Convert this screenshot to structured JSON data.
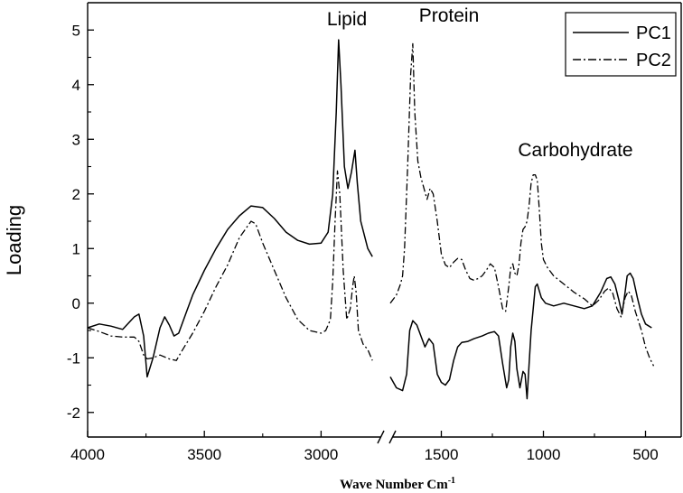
{
  "chart_data": {
    "type": "line",
    "title": "",
    "xlabel": "Wave Number Cm",
    "xlabel_sup": "-1",
    "ylabel": "Loading",
    "ylim": [
      -2.45,
      5.5
    ],
    "x_axis": "reversed, broken between 2750 and 1750",
    "x_ticks": [
      4000,
      3500,
      3000,
      1500,
      1000,
      500
    ],
    "y_ticks": [
      -2,
      -1,
      0,
      1,
      2,
      3,
      4,
      5
    ],
    "legend_position": "top-right",
    "annotations": [
      "Lipid",
      "Protein",
      "Carbohydrate"
    ],
    "series": [
      {
        "name": "PC1",
        "style": "solid",
        "segments": [
          [
            [
              4000,
              -0.45
            ],
            [
              3950,
              -0.38
            ],
            [
              3900,
              -0.42
            ],
            [
              3850,
              -0.48
            ],
            [
              3800,
              -0.25
            ],
            [
              3780,
              -0.2
            ],
            [
              3760,
              -0.6
            ],
            [
              3745,
              -1.35
            ],
            [
              3720,
              -1.0
            ],
            [
              3690,
              -0.45
            ],
            [
              3670,
              -0.25
            ],
            [
              3650,
              -0.4
            ],
            [
              3630,
              -0.6
            ],
            [
              3610,
              -0.55
            ],
            [
              3580,
              -0.2
            ],
            [
              3550,
              0.15
            ],
            [
              3500,
              0.6
            ],
            [
              3450,
              1.0
            ],
            [
              3400,
              1.35
            ],
            [
              3350,
              1.6
            ],
            [
              3300,
              1.78
            ],
            [
              3250,
              1.75
            ],
            [
              3200,
              1.55
            ],
            [
              3150,
              1.3
            ],
            [
              3100,
              1.15
            ],
            [
              3050,
              1.08
            ],
            [
              3000,
              1.1
            ],
            [
              2970,
              1.3
            ],
            [
              2950,
              2.0
            ],
            [
              2935,
              3.5
            ],
            [
              2925,
              4.82
            ],
            [
              2915,
              4.0
            ],
            [
              2900,
              2.5
            ],
            [
              2885,
              2.1
            ],
            [
              2870,
              2.4
            ],
            [
              2855,
              2.8
            ],
            [
              2845,
              2.2
            ],
            [
              2830,
              1.5
            ],
            [
              2800,
              1.0
            ],
            [
              2780,
              0.85
            ]
          ],
          [
            [
              1750,
              -1.35
            ],
            [
              1720,
              -1.55
            ],
            [
              1690,
              -1.6
            ],
            [
              1670,
              -1.3
            ],
            [
              1655,
              -0.5
            ],
            [
              1640,
              -0.32
            ],
            [
              1620,
              -0.4
            ],
            [
              1600,
              -0.6
            ],
            [
              1580,
              -0.8
            ],
            [
              1560,
              -0.65
            ],
            [
              1540,
              -0.75
            ],
            [
              1520,
              -1.3
            ],
            [
              1500,
              -1.45
            ],
            [
              1480,
              -1.5
            ],
            [
              1460,
              -1.4
            ],
            [
              1440,
              -1.05
            ],
            [
              1420,
              -0.8
            ],
            [
              1400,
              -0.72
            ],
            [
              1370,
              -0.7
            ],
            [
              1340,
              -0.65
            ],
            [
              1300,
              -0.6
            ],
            [
              1270,
              -0.55
            ],
            [
              1240,
              -0.52
            ],
            [
              1220,
              -0.6
            ],
            [
              1200,
              -1.1
            ],
            [
              1180,
              -1.55
            ],
            [
              1170,
              -1.4
            ],
            [
              1160,
              -0.8
            ],
            [
              1150,
              -0.55
            ],
            [
              1140,
              -0.7
            ],
            [
              1130,
              -1.2
            ],
            [
              1115,
              -1.55
            ],
            [
              1100,
              -1.25
            ],
            [
              1090,
              -1.3
            ],
            [
              1080,
              -1.75
            ],
            [
              1070,
              -1.1
            ],
            [
              1060,
              -0.5
            ],
            [
              1050,
              -0.1
            ],
            [
              1040,
              0.3
            ],
            [
              1030,
              0.35
            ],
            [
              1010,
              0.1
            ],
            [
              990,
              0.0
            ],
            [
              950,
              -0.05
            ],
            [
              900,
              0.0
            ],
            [
              850,
              -0.05
            ],
            [
              800,
              -0.1
            ],
            [
              760,
              -0.05
            ],
            [
              720,
              0.2
            ],
            [
              690,
              0.45
            ],
            [
              670,
              0.48
            ],
            [
              650,
              0.35
            ],
            [
              630,
              0.05
            ],
            [
              615,
              -0.2
            ],
            [
              600,
              0.2
            ],
            [
              590,
              0.5
            ],
            [
              575,
              0.55
            ],
            [
              560,
              0.45
            ],
            [
              540,
              0.1
            ],
            [
              520,
              -0.2
            ],
            [
              500,
              -0.38
            ],
            [
              470,
              -0.45
            ]
          ]
        ]
      },
      {
        "name": "PC2",
        "style": "dash-dot",
        "segments": [
          [
            [
              4000,
              -0.45
            ],
            [
              3950,
              -0.52
            ],
            [
              3900,
              -0.6
            ],
            [
              3850,
              -0.62
            ],
            [
              3800,
              -0.62
            ],
            [
              3780,
              -0.7
            ],
            [
              3760,
              -0.95
            ],
            [
              3745,
              -1.02
            ],
            [
              3720,
              -1.0
            ],
            [
              3690,
              -0.95
            ],
            [
              3650,
              -1.02
            ],
            [
              3620,
              -1.05
            ],
            [
              3600,
              -0.9
            ],
            [
              3550,
              -0.55
            ],
            [
              3500,
              -0.15
            ],
            [
              3450,
              0.3
            ],
            [
              3400,
              0.7
            ],
            [
              3350,
              1.2
            ],
            [
              3300,
              1.5
            ],
            [
              3280,
              1.45
            ],
            [
              3250,
              1.1
            ],
            [
              3200,
              0.6
            ],
            [
              3150,
              0.1
            ],
            [
              3100,
              -0.3
            ],
            [
              3050,
              -0.5
            ],
            [
              3000,
              -0.55
            ],
            [
              2980,
              -0.5
            ],
            [
              2960,
              -0.3
            ],
            [
              2950,
              0.4
            ],
            [
              2940,
              1.5
            ],
            [
              2930,
              2.42
            ],
            [
              2920,
              2.0
            ],
            [
              2905,
              0.6
            ],
            [
              2890,
              -0.3
            ],
            [
              2875,
              -0.1
            ],
            [
              2865,
              0.3
            ],
            [
              2858,
              0.5
            ],
            [
              2850,
              0.2
            ],
            [
              2840,
              -0.5
            ],
            [
              2820,
              -0.75
            ],
            [
              2800,
              -0.85
            ],
            [
              2780,
              -1.05
            ]
          ],
          [
            [
              1750,
              0.0
            ],
            [
              1720,
              0.15
            ],
            [
              1700,
              0.35
            ],
            [
              1690,
              0.5
            ],
            [
              1680,
              1.0
            ],
            [
              1665,
              2.5
            ],
            [
              1650,
              4.2
            ],
            [
              1640,
              4.75
            ],
            [
              1630,
              3.5
            ],
            [
              1615,
              2.6
            ],
            [
              1600,
              2.3
            ],
            [
              1585,
              2.1
            ],
            [
              1570,
              1.9
            ],
            [
              1555,
              2.1
            ],
            [
              1540,
              2.0
            ],
            [
              1520,
              1.5
            ],
            [
              1500,
              0.9
            ],
            [
              1480,
              0.7
            ],
            [
              1460,
              0.65
            ],
            [
              1440,
              0.75
            ],
            [
              1420,
              0.82
            ],
            [
              1400,
              0.8
            ],
            [
              1380,
              0.6
            ],
            [
              1360,
              0.45
            ],
            [
              1340,
              0.42
            ],
            [
              1320,
              0.45
            ],
            [
              1300,
              0.5
            ],
            [
              1280,
              0.6
            ],
            [
              1260,
              0.72
            ],
            [
              1240,
              0.65
            ],
            [
              1220,
              0.3
            ],
            [
              1200,
              -0.1
            ],
            [
              1185,
              -0.15
            ],
            [
              1170,
              0.3
            ],
            [
              1160,
              0.65
            ],
            [
              1150,
              0.72
            ],
            [
              1140,
              0.55
            ],
            [
              1130,
              0.5
            ],
            [
              1120,
              0.7
            ],
            [
              1110,
              1.1
            ],
            [
              1100,
              1.35
            ],
            [
              1090,
              1.4
            ],
            [
              1080,
              1.5
            ],
            [
              1070,
              1.8
            ],
            [
              1060,
              2.2
            ],
            [
              1050,
              2.35
            ],
            [
              1040,
              2.35
            ],
            [
              1030,
              2.25
            ],
            [
              1020,
              1.7
            ],
            [
              1010,
              1.1
            ],
            [
              1000,
              0.8
            ],
            [
              980,
              0.65
            ],
            [
              950,
              0.5
            ],
            [
              900,
              0.35
            ],
            [
              850,
              0.2
            ],
            [
              800,
              0.08
            ],
            [
              760,
              -0.05
            ],
            [
              730,
              0.05
            ],
            [
              700,
              0.22
            ],
            [
              680,
              0.28
            ],
            [
              660,
              0.18
            ],
            [
              640,
              -0.1
            ],
            [
              620,
              -0.25
            ],
            [
              600,
              0.1
            ],
            [
              585,
              0.22
            ],
            [
              570,
              0.15
            ],
            [
              550,
              -0.15
            ],
            [
              520,
              -0.5
            ],
            [
              500,
              -0.8
            ],
            [
              480,
              -1.0
            ],
            [
              460,
              -1.15
            ]
          ]
        ]
      }
    ]
  }
}
